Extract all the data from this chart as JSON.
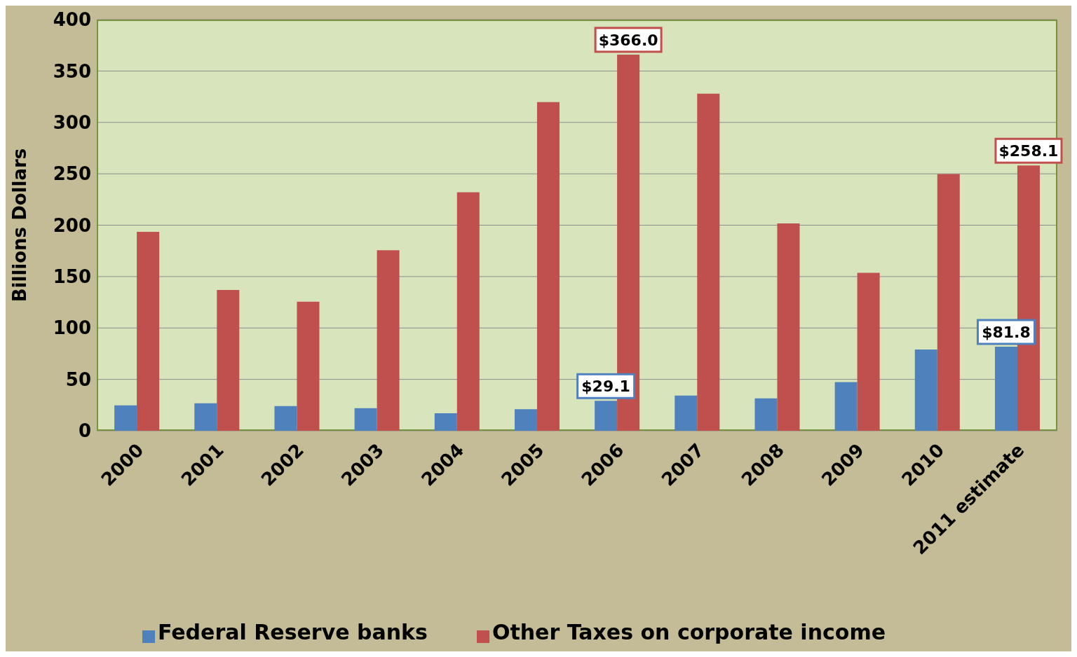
{
  "chart_data": {
    "type": "bar",
    "ylabel": "Billions Dollars",
    "categories": [
      "2000",
      "2001",
      "2002",
      "2003",
      "2004",
      "2005",
      "2006",
      "2007",
      "2008",
      "2009",
      "2010",
      "2011 estimate"
    ],
    "series": [
      {
        "name": "Federal Reserve banks",
        "color": "#4f81bd",
        "values": [
          24.7,
          26.8,
          24,
          22,
          17,
          21,
          29.1,
          34.3,
          31.6,
          47.3,
          79,
          81.8
        ],
        "value_labels": [
          null,
          null,
          null,
          null,
          null,
          null,
          "$29.1",
          null,
          null,
          null,
          null,
          "$81.8"
        ]
      },
      {
        "name": "Other Taxes on corporate income",
        "color": "#c0504d",
        "values": [
          193.5,
          137,
          125.6,
          175.6,
          232,
          319.7,
          366.0,
          328,
          201.7,
          153.7,
          249.7,
          258.1
        ],
        "value_labels": [
          null,
          null,
          null,
          null,
          null,
          null,
          "$366.0",
          null,
          null,
          null,
          null,
          "$258.1"
        ]
      }
    ],
    "ylim": [
      0,
      400
    ],
    "yticks": [
      0,
      50,
      100,
      150,
      200,
      250,
      300,
      350,
      400
    ],
    "grid": "y",
    "legend": "bottom"
  }
}
